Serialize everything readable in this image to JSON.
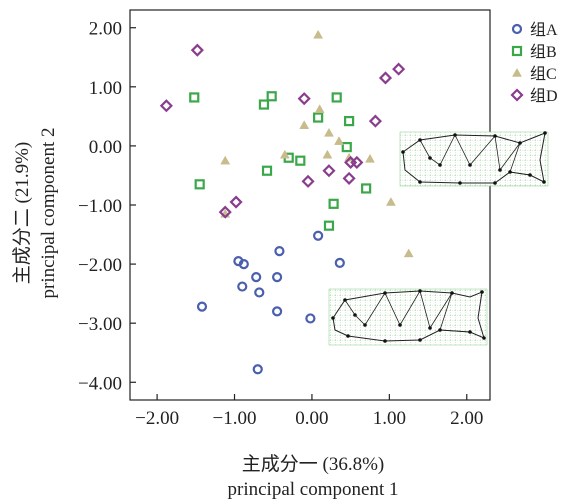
{
  "chart_data": {
    "type": "scatter",
    "xlabel_cn": "主成分一 (36.8%)",
    "xlabel_en": "principal component 1",
    "ylabel_cn": "主成分二 (21.9%)",
    "ylabel_en": "principal component 2",
    "xlim": [
      -2.35,
      2.3
    ],
    "ylim": [
      -4.3,
      2.3
    ],
    "xticks": [
      -2.0,
      -1.0,
      0.0,
      1.0,
      2.0
    ],
    "xtick_labels": [
      "−2.00",
      "−1.00",
      "0.00",
      "1.00",
      "2.00"
    ],
    "yticks": [
      2.0,
      1.0,
      0.0,
      -1.0,
      -2.0,
      -3.0,
      -4.0
    ],
    "ytick_labels": [
      "2.00",
      "1.00",
      "0.00",
      "−1.00",
      "−2.00",
      "−3.00",
      "−4.00"
    ],
    "grid": false,
    "legend_position": "top-right",
    "series": [
      {
        "name": "组A",
        "marker": "circle",
        "color": "#4a5fae",
        "points": [
          [
            0.08,
            -1.52
          ],
          [
            -0.42,
            -1.78
          ],
          [
            -0.95,
            -1.95
          ],
          [
            -0.88,
            -2.0
          ],
          [
            0.36,
            -1.98
          ],
          [
            -0.72,
            -2.22
          ],
          [
            -0.45,
            -2.22
          ],
          [
            -0.9,
            -2.38
          ],
          [
            -0.68,
            -2.48
          ],
          [
            -1.42,
            -2.72
          ],
          [
            -0.45,
            -2.8
          ],
          [
            -0.02,
            -2.92
          ],
          [
            -0.7,
            -3.78
          ]
        ]
      },
      {
        "name": "组B",
        "marker": "square",
        "color": "#3aa84a",
        "points": [
          [
            -1.52,
            0.82
          ],
          [
            -0.52,
            0.84
          ],
          [
            -0.62,
            0.7
          ],
          [
            0.32,
            0.82
          ],
          [
            0.08,
            0.48
          ],
          [
            0.48,
            0.42
          ],
          [
            0.45,
            -0.02
          ],
          [
            -0.3,
            -0.2
          ],
          [
            -0.15,
            -0.25
          ],
          [
            -0.58,
            -0.42
          ],
          [
            -1.45,
            -0.65
          ],
          [
            0.7,
            -0.72
          ],
          [
            0.28,
            -0.98
          ],
          [
            0.22,
            -1.35
          ]
        ]
      },
      {
        "name": "组C",
        "marker": "triangle",
        "color": "#c8bc8c",
        "points": [
          [
            0.08,
            1.88
          ],
          [
            -0.1,
            0.35
          ],
          [
            0.1,
            0.62
          ],
          [
            0.22,
            0.22
          ],
          [
            0.35,
            0.08
          ],
          [
            -0.35,
            -0.15
          ],
          [
            0.2,
            -0.15
          ],
          [
            0.48,
            -0.2
          ],
          [
            0.75,
            -0.22
          ],
          [
            -1.12,
            -0.25
          ],
          [
            1.02,
            -0.95
          ],
          [
            1.25,
            -1.82
          ],
          [
            -1.12,
            -1.15
          ]
        ]
      },
      {
        "name": "组D",
        "marker": "diamond",
        "color": "#8a3c8e",
        "points": [
          [
            -1.48,
            1.62
          ],
          [
            -1.88,
            0.68
          ],
          [
            -0.1,
            0.8
          ],
          [
            1.12,
            1.3
          ],
          [
            0.95,
            1.15
          ],
          [
            0.82,
            0.42
          ],
          [
            0.5,
            -0.28
          ],
          [
            0.58,
            -0.28
          ],
          [
            0.22,
            -0.42
          ],
          [
            -0.05,
            -0.6
          ],
          [
            0.48,
            -0.55
          ],
          [
            -0.98,
            -0.95
          ],
          [
            -1.12,
            -1.12
          ]
        ]
      }
    ]
  }
}
